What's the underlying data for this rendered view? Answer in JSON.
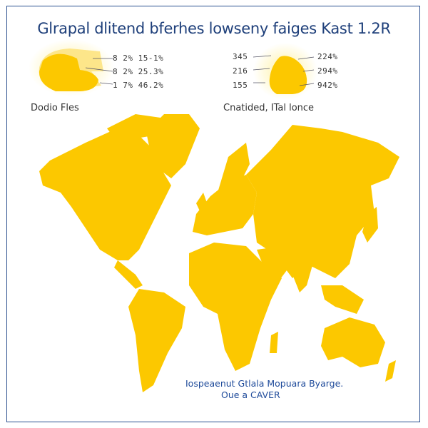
{
  "title": "Glrapal dlitend bferhes lowseny faiges Kast 1.2R",
  "legend_left": {
    "caption": "Dodio Fles",
    "rows": [
      "8 2% 15-1%",
      "8 2% 25.3%",
      "1 7% 46.2%"
    ]
  },
  "legend_right": {
    "caption": "Cnatided, ITal lonce",
    "left_values": [
      "345",
      "216",
      "155"
    ],
    "right_values": [
      "224%",
      "294%",
      "942%"
    ]
  },
  "footer": {
    "line1": "Iospeaenut Gtlala Mopuara Byarge.",
    "line2": "Oue a CAVER"
  },
  "colors": {
    "land": "#fcc800",
    "text_blue": "#1e3f7a",
    "border": "#2a4f8f"
  }
}
